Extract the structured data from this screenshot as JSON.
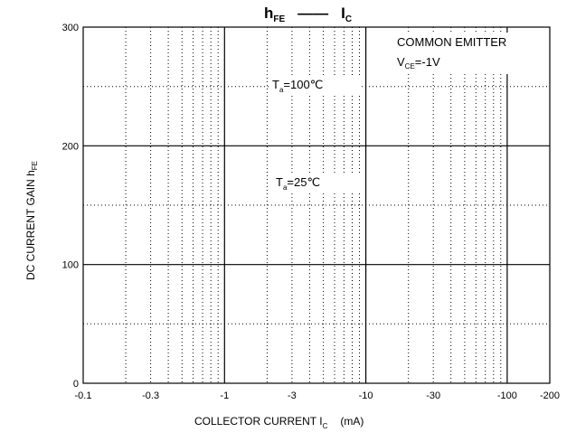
{
  "chart_data": {
    "type": "line",
    "title": {
      "left_main": "h",
      "left_sub": "FE",
      "dash": "——",
      "right_main": "I",
      "right_sub": "C"
    },
    "ylabel": {
      "main": "DC CURRENT GAIN   h",
      "sub": "FE"
    },
    "xlabel": {
      "main": "COLLECTOR CURRENT   I",
      "sub": "C",
      "unit": "(mA)"
    },
    "x_scale": "log",
    "x_domain": [
      0.1,
      200
    ],
    "xlim_labels": [
      "-0.1",
      "-200"
    ],
    "ylim": [
      0,
      300
    ],
    "x_ticks": [
      {
        "value": 0.1,
        "label": "-0.1"
      },
      {
        "value": 0.3,
        "label": "-0.3"
      },
      {
        "value": 1,
        "label": "-1"
      },
      {
        "value": 3,
        "label": "-3"
      },
      {
        "value": 10,
        "label": "-10"
      },
      {
        "value": 30,
        "label": "-30"
      },
      {
        "value": 100,
        "label": "-100"
      },
      {
        "value": 200,
        "label": "-200"
      }
    ],
    "y_ticks": [
      {
        "value": 0,
        "label": "0"
      },
      {
        "value": 100,
        "label": "100"
      },
      {
        "value": 200,
        "label": "200"
      },
      {
        "value": 300,
        "label": "300"
      }
    ],
    "x_major_grid": [
      1,
      10,
      100
    ],
    "x_minor_grid": [
      0.2,
      0.3,
      0.4,
      0.5,
      0.6,
      0.7,
      0.8,
      0.9,
      2,
      3,
      4,
      5,
      6,
      7,
      8,
      9,
      20,
      30,
      40,
      50,
      60,
      70,
      80,
      90
    ],
    "y_major_grid": [
      100,
      200
    ],
    "y_minor_grid": [
      50,
      150,
      250
    ],
    "annotations": {
      "condition_line1": "COMMON EMITTER",
      "condition_line2": {
        "main": "V",
        "sub": "CE",
        "rest": "=-1V"
      },
      "t100": {
        "main": "T",
        "sub": "a",
        "rest": "=100℃"
      },
      "t25": {
        "main": "T",
        "sub": "a",
        "rest": "=25℃"
      }
    },
    "series": [],
    "grid": true,
    "legend": "none"
  }
}
